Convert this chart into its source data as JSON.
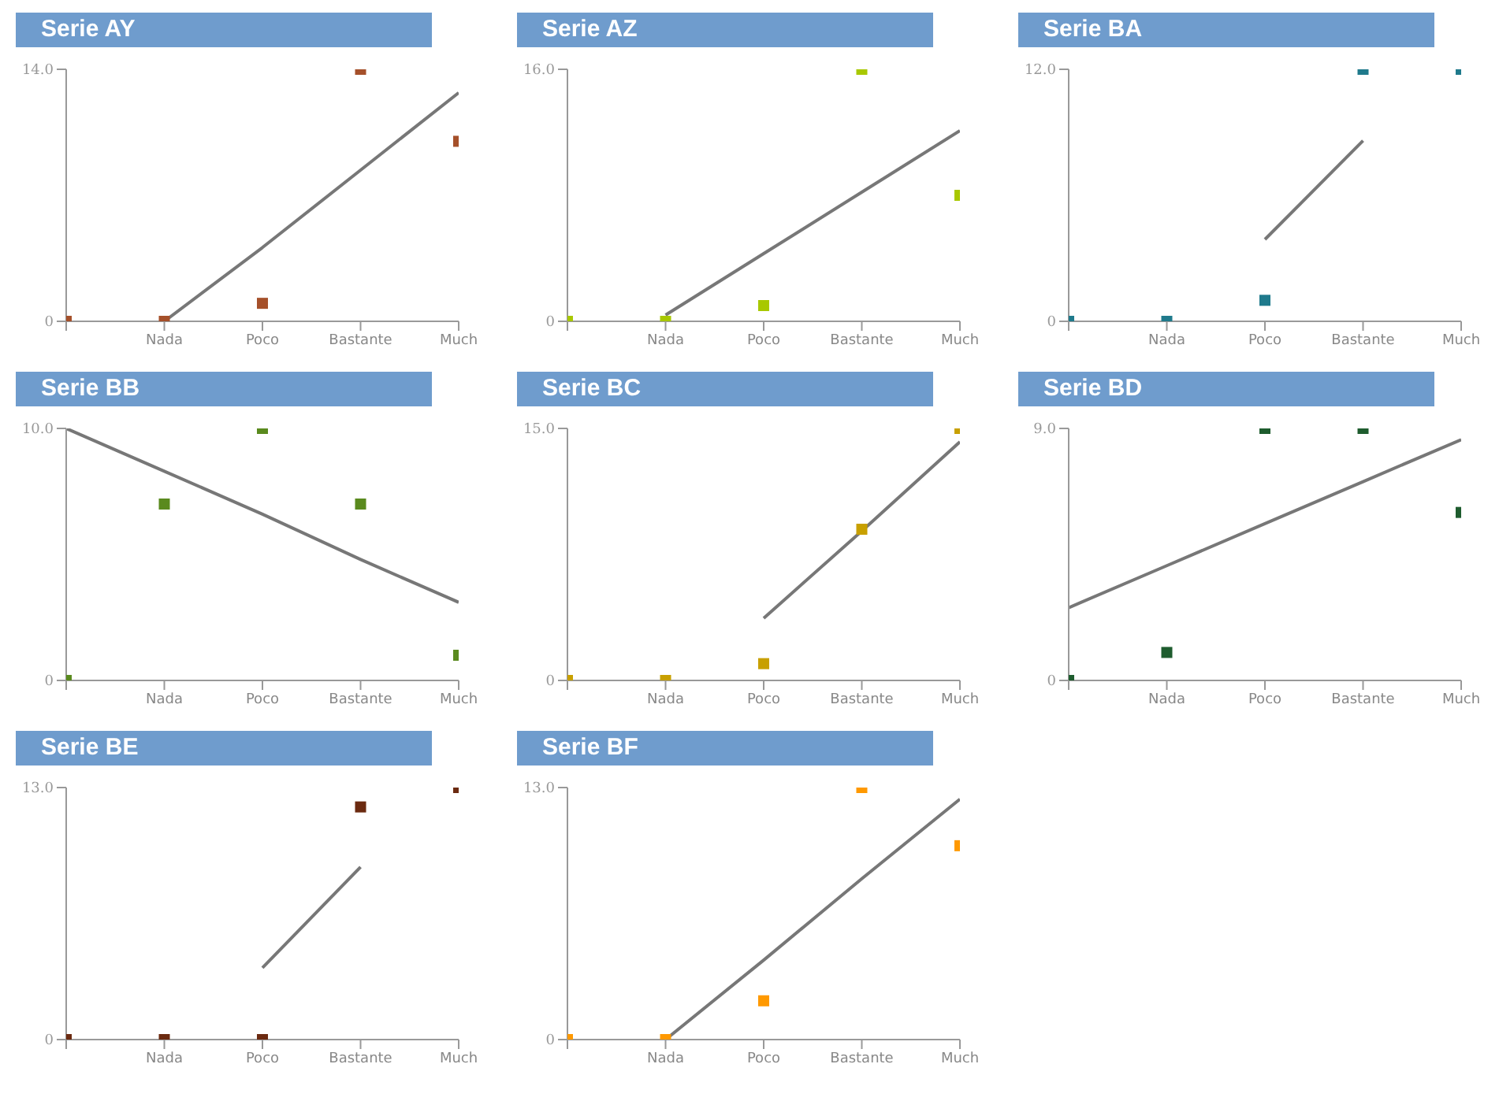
{
  "chart_data": [
    {
      "type": "scatter",
      "title": "Serie AY",
      "categories": [
        null,
        "Nada",
        "Poco",
        "Bastante",
        "Much"
      ],
      "ylim": [
        0,
        14
      ],
      "yticks": [
        {
          "value": 0,
          "label": "0"
        },
        {
          "value": 14,
          "label": "14.0"
        }
      ],
      "legend": false,
      "series": [
        {
          "color": "#a5502a",
          "marker": "square",
          "values": [
            0,
            0,
            1,
            14,
            10
          ]
        },
        {
          "type": "line",
          "color": "#777777",
          "marker": "none",
          "values": [
            null,
            0,
            4.1,
            8.4,
            12.7
          ]
        }
      ]
    },
    {
      "type": "scatter",
      "title": "Serie AZ",
      "categories": [
        null,
        "Nada",
        "Poco",
        "Bastante",
        "Much"
      ],
      "ylim": [
        0,
        16
      ],
      "yticks": [
        {
          "value": 0,
          "label": "0"
        },
        {
          "value": 16,
          "label": "16.0"
        }
      ],
      "legend": false,
      "series": [
        {
          "color": "#a8c800",
          "marker": "square",
          "values": [
            0,
            0,
            1,
            16,
            8
          ]
        },
        {
          "type": "line",
          "color": "#777777",
          "marker": "none",
          "values": [
            null,
            0.4,
            4.3,
            8.2,
            12.1
          ]
        }
      ]
    },
    {
      "type": "scatter",
      "title": "Serie BA",
      "categories": [
        null,
        "Nada",
        "Poco",
        "Bastante",
        "Much"
      ],
      "ylim": [
        0,
        12
      ],
      "yticks": [
        {
          "value": 0,
          "label": "0"
        },
        {
          "value": 12,
          "label": "12.0"
        }
      ],
      "legend": false,
      "series": [
        {
          "color": "#1f7a8c",
          "marker": "square",
          "values": [
            0,
            0,
            1,
            12,
            12
          ]
        },
        {
          "type": "line",
          "color": "#777777",
          "marker": "none",
          "values": [
            null,
            null,
            3.9,
            8.6,
            null
          ]
        }
      ]
    },
    {
      "type": "scatter",
      "title": "Serie BB",
      "categories": [
        null,
        "Nada",
        "Poco",
        "Bastante",
        "Much"
      ],
      "ylim": [
        0,
        10
      ],
      "yticks": [
        {
          "value": 0,
          "label": "0"
        },
        {
          "value": 10,
          "label": "10.0"
        }
      ],
      "legend": false,
      "series": [
        {
          "color": "#5a8a1e",
          "marker": "square",
          "values": [
            0,
            7,
            10,
            7,
            1
          ]
        },
        {
          "type": "line",
          "color": "#777777",
          "marker": "none",
          "values": [
            10,
            8.3,
            6.6,
            4.8,
            3.1
          ]
        }
      ]
    },
    {
      "type": "scatter",
      "title": "Serie BC",
      "categories": [
        null,
        "Nada",
        "Poco",
        "Bastante",
        "Much"
      ],
      "ylim": [
        0,
        15
      ],
      "yticks": [
        {
          "value": 0,
          "label": "0"
        },
        {
          "value": 15,
          "label": "15.0"
        }
      ],
      "legend": false,
      "series": [
        {
          "color": "#c8a000",
          "marker": "square",
          "values": [
            0,
            0,
            1,
            9,
            15
          ]
        },
        {
          "type": "line",
          "color": "#777777",
          "marker": "none",
          "values": [
            null,
            null,
            3.7,
            8.9,
            14.2
          ]
        }
      ]
    },
    {
      "type": "scatter",
      "title": "Serie BD",
      "categories": [
        null,
        "Nada",
        "Poco",
        "Bastante",
        "Much"
      ],
      "ylim": [
        0,
        9
      ],
      "yticks": [
        {
          "value": 0,
          "label": "0"
        },
        {
          "value": 9,
          "label": "9.0"
        }
      ],
      "legend": false,
      "series": [
        {
          "color": "#1e5c2e",
          "marker": "square",
          "values": [
            0,
            1,
            9,
            9,
            6
          ]
        },
        {
          "type": "line",
          "color": "#777777",
          "marker": "none",
          "values": [
            2.6,
            4.1,
            5.6,
            7.1,
            8.6
          ]
        }
      ]
    },
    {
      "type": "scatter",
      "title": "Serie BE",
      "categories": [
        null,
        "Nada",
        "Poco",
        "Bastante",
        "Much"
      ],
      "ylim": [
        0,
        13
      ],
      "yticks": [
        {
          "value": 0,
          "label": "0"
        },
        {
          "value": 13,
          "label": "13.0"
        }
      ],
      "legend": false,
      "series": [
        {
          "color": "#6b2a10",
          "marker": "square",
          "values": [
            0,
            0,
            0,
            12,
            13
          ]
        },
        {
          "type": "line",
          "color": "#777777",
          "marker": "none",
          "values": [
            null,
            null,
            3.7,
            8.9,
            null
          ]
        }
      ]
    },
    {
      "type": "scatter",
      "title": "Serie BF",
      "categories": [
        null,
        "Nada",
        "Poco",
        "Bastante",
        "Much"
      ],
      "ylim": [
        0,
        13
      ],
      "yticks": [
        {
          "value": 0,
          "label": "0"
        },
        {
          "value": 13,
          "label": "13.0"
        }
      ],
      "legend": false,
      "series": [
        {
          "color": "#ff9900",
          "marker": "square",
          "values": [
            0,
            0,
            2,
            13,
            10
          ]
        },
        {
          "type": "line",
          "color": "#777777",
          "marker": "none",
          "values": [
            null,
            0,
            4.1,
            8.3,
            12.4
          ]
        }
      ]
    }
  ]
}
